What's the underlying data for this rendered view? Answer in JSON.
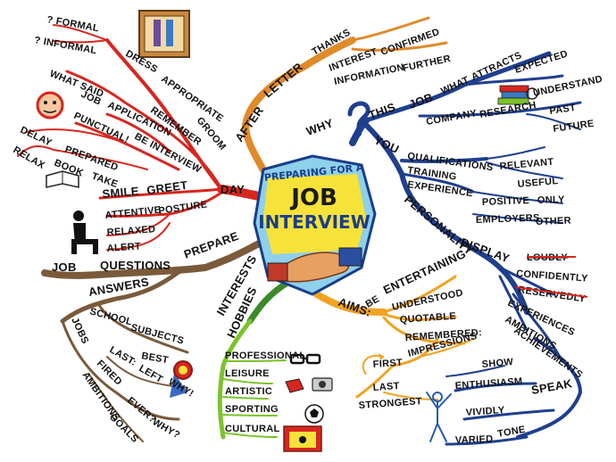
{
  "center": {
    "top": "PREPARING FOR A",
    "job": "JOB",
    "interview": "INTERVIEW"
  },
  "branches": {
    "day": {
      "main": "DAY",
      "dress": "DRESS",
      "appropriate": "APPROPRIATE",
      "formal": "? FORMAL",
      "informal": "? INFORMAL",
      "groom": "GROOM",
      "remember": "REMEMBER",
      "what_said": "WHAT SAID",
      "job": "JOB",
      "application": "APPLICATION",
      "punctual": "PUNCTUAL!",
      "be_interview": "BE INTERVIEW",
      "delay": "DELAY",
      "prepared": "PREPARED",
      "relax": "RELAX",
      "book": "BOOK",
      "take": "TAKE",
      "smile": "SMILE",
      "greet": "GREET",
      "attentive": "ATTENTIVE",
      "posture": "POSTURE",
      "relaxed": "RELAXED",
      "alert": "ALERT"
    },
    "after": {
      "after": "AFTER",
      "letter": "LETTER",
      "thanks": "THANKS",
      "interest": "INTEREST",
      "confirmed": "CONFIRMED",
      "information": "INFORMATION",
      "further": "FURTHER"
    },
    "why": {
      "why": "WHY",
      "this": "THIS",
      "job": "JOB",
      "what": "WHAT",
      "attracts": "ATTRACTS",
      "expected": "EXPECTED",
      "company": "COMPANY",
      "research": "RESEARCH",
      "understand": "UNDERSTAND",
      "past": "PAST",
      "future": "FUTURE",
      "you": "YOU",
      "qualifications": "QUALIFICATIONS",
      "training": "TRAINING",
      "experience": "EXPERIENCE",
      "relevant": "RELEVANT",
      "useful": "USEFUL",
      "positive": "POSITIVE",
      "only": "ONLY",
      "employers": "EMPLOYERS",
      "other": "OTHER",
      "personality": "PERSONALITY",
      "display": "DISPLAY",
      "loudly": "LOUDLY",
      "confidently": "CONFIDENTLY",
      "reservedly": "RESERVEDLY",
      "experiences": "EXPERIENCES",
      "ambitions": "AMBITIONS",
      "achievements": "ACHIEVEMENTS",
      "speak": "SPEAK",
      "show": "SHOW",
      "enthusiasm": "ENTHUSIASM",
      "vividly": "VIVIDLY",
      "varied": "VARIED",
      "tone": "TONE"
    },
    "aims": {
      "aims": "AIMS:",
      "be": "BE",
      "entertaining": "ENTERTAINING",
      "understood": "UNDERSTOOD",
      "quotable": "QUOTABLE",
      "remembered": "REMEMBERED:",
      "first": "FIRST",
      "impressions": "IMPRESSIONS",
      "last": "LAST",
      "strongest": "STRONGEST"
    },
    "prepare": {
      "prepare": "PREPARE",
      "questions": "QUESTIONS",
      "job": "JOB",
      "answers": "ANSWERS",
      "school": "SCHOOL",
      "subjects": "SUBJECTS",
      "best": "BEST",
      "jobs": "JOBS",
      "last": "LAST:",
      "left": "LEFT",
      "why1": "WHY!",
      "fired": "FIRED",
      "ever": "EVER?",
      "why2": "WHY?",
      "ambitions": "AMBITIONS",
      "goals": "GOALS"
    },
    "interests": {
      "interests": "INTERESTS",
      "hobbies": "HOBBIES",
      "professional": "PROFESSIONAL",
      "leisure": "LEISURE",
      "artistic": "ARTISTIC",
      "sporting": "SPORTING",
      "cultural": "CULTURAL"
    }
  },
  "icons": [
    "wardrobe-icon",
    "clock-face-icon",
    "book-icon",
    "seated-person-icon",
    "books-stack-icon",
    "handshake-icon",
    "question-mark-icon",
    "medal-icon",
    "glasses-icon",
    "camera-icon",
    "football-icon",
    "theatre-icon",
    "cheering-person-icon",
    "arrow-loop-icon"
  ],
  "colors": {
    "day_branch": "#d7261e",
    "after_branch": "#e08a2a",
    "why_branch": "#1f3f8f",
    "aims_branch": "#f0a321",
    "prepare_branch": "#7a5a3a",
    "interests_branch": "#3a8a2a",
    "hobbies_branch": "#7cc22a",
    "center_bg": "#8fd0ea",
    "center_yellow": "#f7e23a"
  }
}
